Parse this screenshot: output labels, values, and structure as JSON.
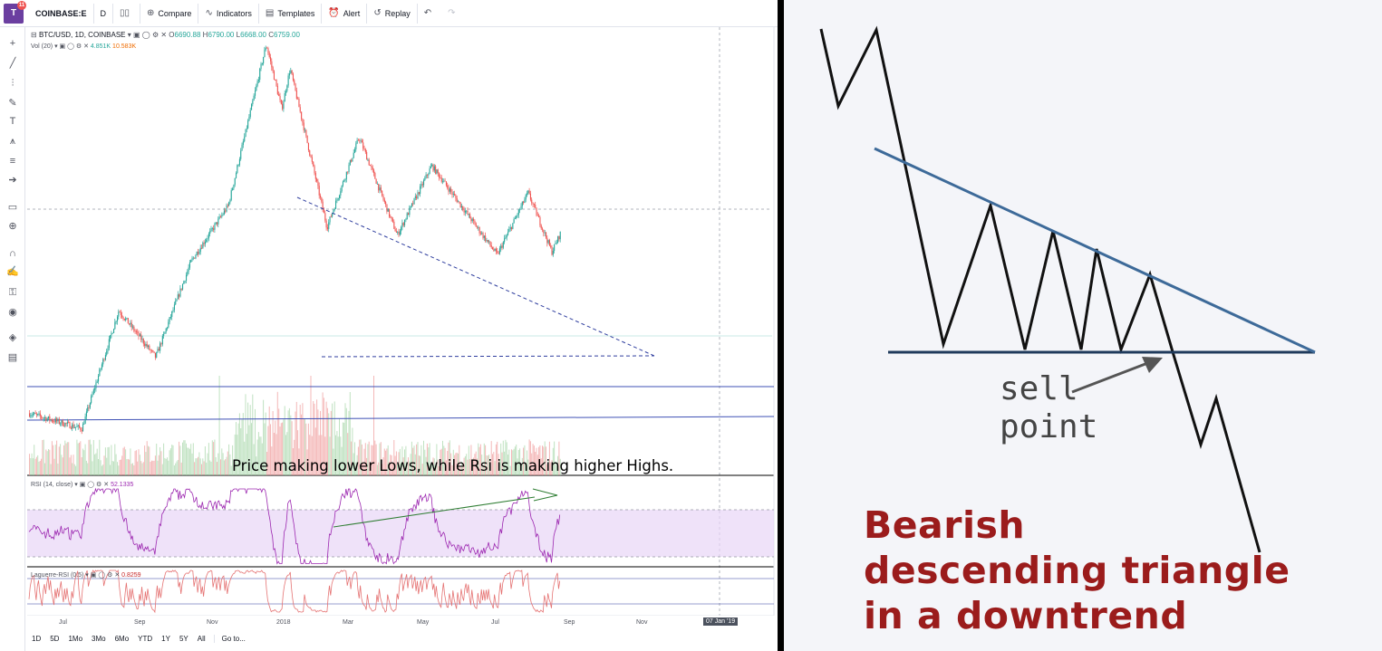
{
  "toolbar": {
    "logo_badge": "11",
    "symbol": "COINBASE:E",
    "interval": "D",
    "compare": "Compare",
    "indicators": "Indicators",
    "templates": "Templates",
    "alert": "Alert",
    "replay": "Replay",
    "icons": [
      "candles-icon",
      "plus-icon",
      "indicators-icon",
      "templates-icon",
      "alert-icon",
      "replay-icon",
      "undo-icon",
      "redo-icon"
    ]
  },
  "left_tools": [
    "crosshair-icon",
    "trendline-icon",
    "pitchfork-icon",
    "brush-icon",
    "text-icon",
    "pattern-icon",
    "prediction-icon",
    "arrow-icon",
    "ruler-icon",
    "zoom-icon",
    "magnet-icon",
    "lock-drawings-icon",
    "lock-icon",
    "eye-icon",
    "layers-icon",
    "trash-icon"
  ],
  "legend": {
    "pair": "BTC/USD, 1D, COINBASE",
    "o_label": "O",
    "o": "6690.88",
    "h_label": "H",
    "h": "6790.00",
    "l_label": "L",
    "l": "6668.00",
    "c_label": "C",
    "c": "6759.00",
    "vol_label": "Vol (20)",
    "vol1": "4.851K",
    "vol2": "10.583K",
    "rsi_label": "RSI (14, close)",
    "rsi_value": "52.1335",
    "laguerre_label": "Laguerre-RSI (0.5)",
    "laguerre_value": "0.8259"
  },
  "annotation": "Price making lower Lows, while Rsi is making higher Highs.",
  "x_axis": {
    "labels": [
      "Jul",
      "Sep",
      "Nov",
      "2018",
      "Mar",
      "May",
      "Jul",
      "Sep",
      "Nov"
    ],
    "crosshair_date": "07 Jan '19"
  },
  "ranges": [
    "1D",
    "5D",
    "1Mo",
    "3Mo",
    "6Mo",
    "YTD",
    "1Y",
    "5Y",
    "All"
  ],
  "goto": "Go to...",
  "colors": {
    "up": "#26a69a",
    "down": "#ef5350",
    "rsi": "#9c27b0",
    "rsi_band": "#e8d5f7",
    "laguerre": "#e57373",
    "blue_line": "#3f51b5",
    "triangle_line": "#2e5a8a",
    "title": "#9b1c1c"
  },
  "chart_data": {
    "type": "candlestick",
    "symbol": "BTC/USD",
    "interval": "1D",
    "exchange": "COINBASE",
    "price_path": [
      [
        "2017-06-01",
        2400
      ],
      [
        "2017-07-15",
        2200
      ],
      [
        "2017-08-15",
        4300
      ],
      [
        "2017-09-15",
        3300
      ],
      [
        "2017-10-15",
        5700
      ],
      [
        "2017-11-15",
        7800
      ],
      [
        "2017-12-17",
        19500
      ],
      [
        "2017-12-30",
        13500
      ],
      [
        "2018-01-06",
        17000
      ],
      [
        "2018-02-06",
        6900
      ],
      [
        "2018-03-05",
        11500
      ],
      [
        "2018-04-06",
        6600
      ],
      [
        "2018-05-05",
        9800
      ],
      [
        "2018-06-29",
        5900
      ],
      [
        "2018-07-25",
        8400
      ],
      [
        "2018-08-14",
        6000
      ],
      [
        "2018-08-22",
        6759
      ]
    ],
    "volume": {
      "last": 4851,
      "ma": 10583
    },
    "rsi": {
      "period": 14,
      "last": 52.1335,
      "upper": 70,
      "lower": 30
    },
    "laguerre_rsi": {
      "gamma": 0.5,
      "last": 0.8259
    }
  },
  "diagram": {
    "sell_label_1": "sell",
    "sell_label_2": "point",
    "title_1": "Bearish",
    "title_2": "descending triangle",
    "title_3": "in a downtrend"
  }
}
